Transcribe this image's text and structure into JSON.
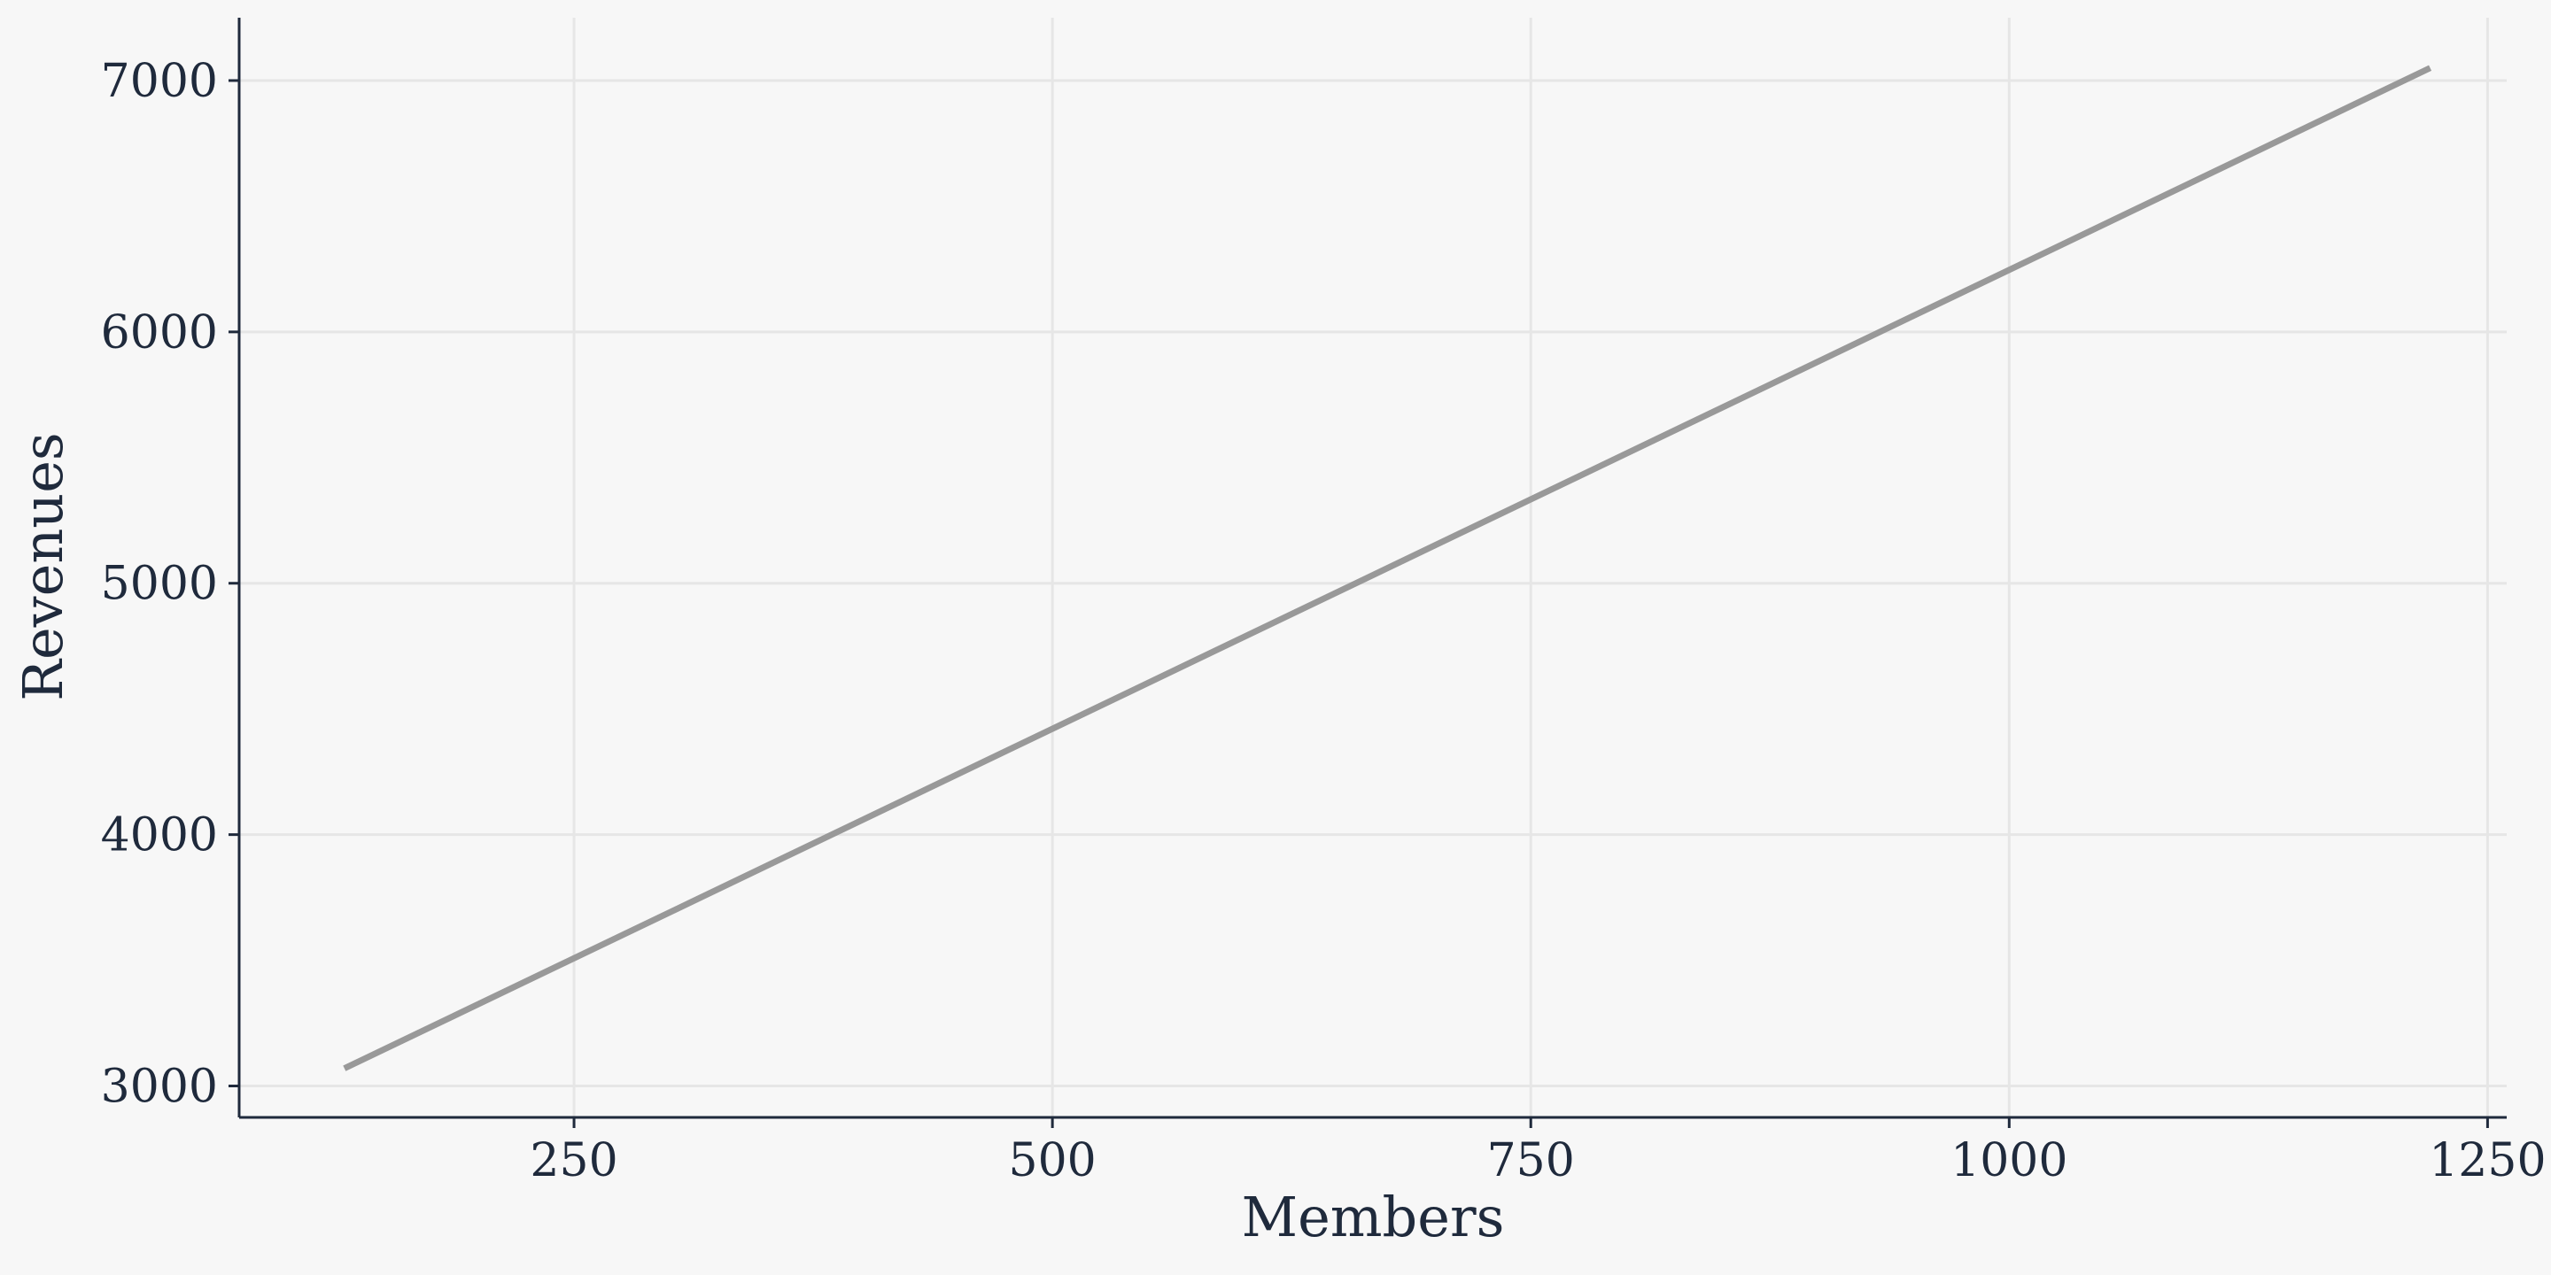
{
  "chart_data": {
    "type": "line",
    "xlabel": "Members",
    "ylabel": "Revenues",
    "xlim": [
      75,
      1260
    ],
    "ylim": [
      2875,
      7250
    ],
    "x_ticks": [
      250,
      500,
      750,
      1000,
      1250
    ],
    "x_tick_labels": [
      "250",
      "500",
      "750",
      "1000",
      "1250"
    ],
    "y_ticks": [
      3000,
      4000,
      5000,
      6000,
      7000
    ],
    "y_tick_labels": [
      "3000",
      "4000",
      "5000",
      "6000",
      "7000"
    ],
    "grid": true,
    "series": [
      {
        "x": [
          130,
          1220
        ],
        "y": [
          3070,
          7050
        ],
        "color": "#999999"
      }
    ],
    "colors": {
      "background": "#f7f7f7",
      "grid": "#e6e6e6",
      "axis": "#1f2a3c",
      "text": "#1f2a3c"
    }
  }
}
